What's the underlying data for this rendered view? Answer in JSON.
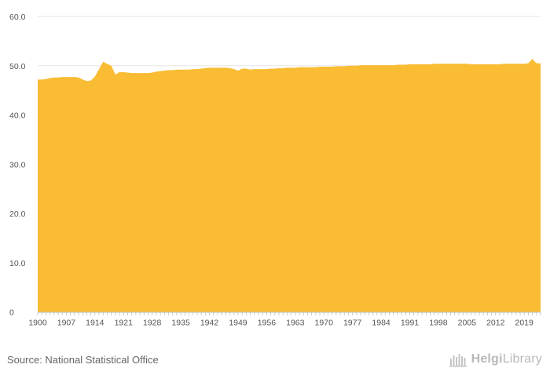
{
  "chart_data": {
    "type": "area",
    "title": "",
    "xlabel": "",
    "ylabel": "",
    "ylim": [
      0,
      60
    ],
    "xlim": [
      1900,
      2023
    ],
    "grid": true,
    "y_ticks": [
      "0",
      "10.0",
      "20.0",
      "30.0",
      "40.0",
      "50.0",
      "60.0"
    ],
    "x_ticks": [
      "1900",
      "1907",
      "1914",
      "1921",
      "1928",
      "1935",
      "1942",
      "1949",
      "1956",
      "1963",
      "1970",
      "1977",
      "1984",
      "1991",
      "1998",
      "2005",
      "2012",
      "2019"
    ],
    "color": "#F9BC33",
    "series": [
      {
        "x": [
          1900,
          1901,
          1902,
          1903,
          1904,
          1905,
          1906,
          1907,
          1908,
          1909,
          1910,
          1911,
          1912,
          1913,
          1914,
          1915,
          1916,
          1917,
          1918,
          1919,
          1920,
          1921,
          1922,
          1923,
          1924,
          1925,
          1926,
          1927,
          1928,
          1929,
          1930,
          1931,
          1932,
          1933,
          1934,
          1935,
          1936,
          1937,
          1938,
          1939,
          1940,
          1941,
          1942,
          1943,
          1944,
          1945,
          1946,
          1947,
          1948,
          1949,
          1950,
          1951,
          1952,
          1953,
          1954,
          1955,
          1956,
          1957,
          1958,
          1959,
          1960,
          1961,
          1962,
          1963,
          1964,
          1965,
          1966,
          1967,
          1968,
          1969,
          1970,
          1971,
          1972,
          1973,
          1974,
          1975,
          1976,
          1977,
          1978,
          1979,
          1980,
          1981,
          1982,
          1983,
          1984,
          1985,
          1986,
          1987,
          1988,
          1989,
          1990,
          1991,
          1992,
          1993,
          1994,
          1995,
          1996,
          1997,
          1998,
          1999,
          2000,
          2001,
          2002,
          2003,
          2004,
          2005,
          2006,
          2007,
          2008,
          2009,
          2010,
          2011,
          2012,
          2013,
          2014,
          2015,
          2016,
          2017,
          2018,
          2019,
          2020,
          2021,
          2022,
          2023
        ],
        "values": [
          47.2,
          47.2,
          47.3,
          47.5,
          47.6,
          47.6,
          47.7,
          47.7,
          47.7,
          47.7,
          47.6,
          47.2,
          46.9,
          47.0,
          47.8,
          49.3,
          50.8,
          50.4,
          50.0,
          48.2,
          48.7,
          48.7,
          48.6,
          48.5,
          48.5,
          48.5,
          48.5,
          48.5,
          48.6,
          48.8,
          48.9,
          49.0,
          49.1,
          49.1,
          49.2,
          49.2,
          49.2,
          49.2,
          49.3,
          49.3,
          49.4,
          49.5,
          49.6,
          49.6,
          49.6,
          49.6,
          49.6,
          49.5,
          49.3,
          49.0,
          49.4,
          49.4,
          49.2,
          49.3,
          49.3,
          49.3,
          49.3,
          49.4,
          49.4,
          49.5,
          49.5,
          49.6,
          49.6,
          49.6,
          49.7,
          49.7,
          49.7,
          49.7,
          49.7,
          49.8,
          49.8,
          49.8,
          49.8,
          49.9,
          49.9,
          49.9,
          50.0,
          50.0,
          50.0,
          50.1,
          50.1,
          50.1,
          50.1,
          50.1,
          50.1,
          50.1,
          50.1,
          50.1,
          50.2,
          50.2,
          50.2,
          50.3,
          50.3,
          50.3,
          50.3,
          50.3,
          50.3,
          50.4,
          50.4,
          50.4,
          50.4,
          50.4,
          50.4,
          50.4,
          50.4,
          50.4,
          50.3,
          50.3,
          50.3,
          50.3,
          50.3,
          50.3,
          50.3,
          50.3,
          50.4,
          50.4,
          50.4,
          50.4,
          50.4,
          50.4,
          50.5,
          51.4,
          50.5,
          50.5
        ]
      }
    ]
  },
  "footer": {
    "source": "Source: National Statistical Office",
    "brand_part1": "Helgi",
    "brand_part2": "Library"
  }
}
